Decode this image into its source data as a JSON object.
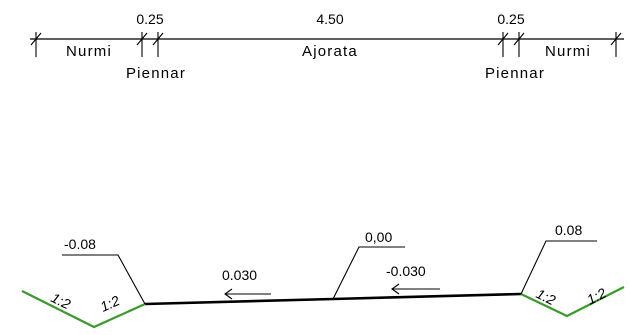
{
  "dimensions": {
    "values": [
      "0.25",
      "4.50",
      "0.25"
    ],
    "zones": [
      "Nurmi",
      "Ajorata",
      "Nurmi"
    ],
    "shoulders": [
      "Piennar",
      "Piennar"
    ]
  },
  "section": {
    "elevations": [
      "-0.08",
      "0,00",
      "0.08"
    ],
    "crossfalls": [
      "0.030",
      "-0.030"
    ],
    "slopes": [
      "1:2",
      "1:2",
      "1:2",
      "1:2"
    ]
  },
  "colors": {
    "line": "#000000",
    "ditch": "#3a9a2a",
    "background": "#ffffff"
  }
}
